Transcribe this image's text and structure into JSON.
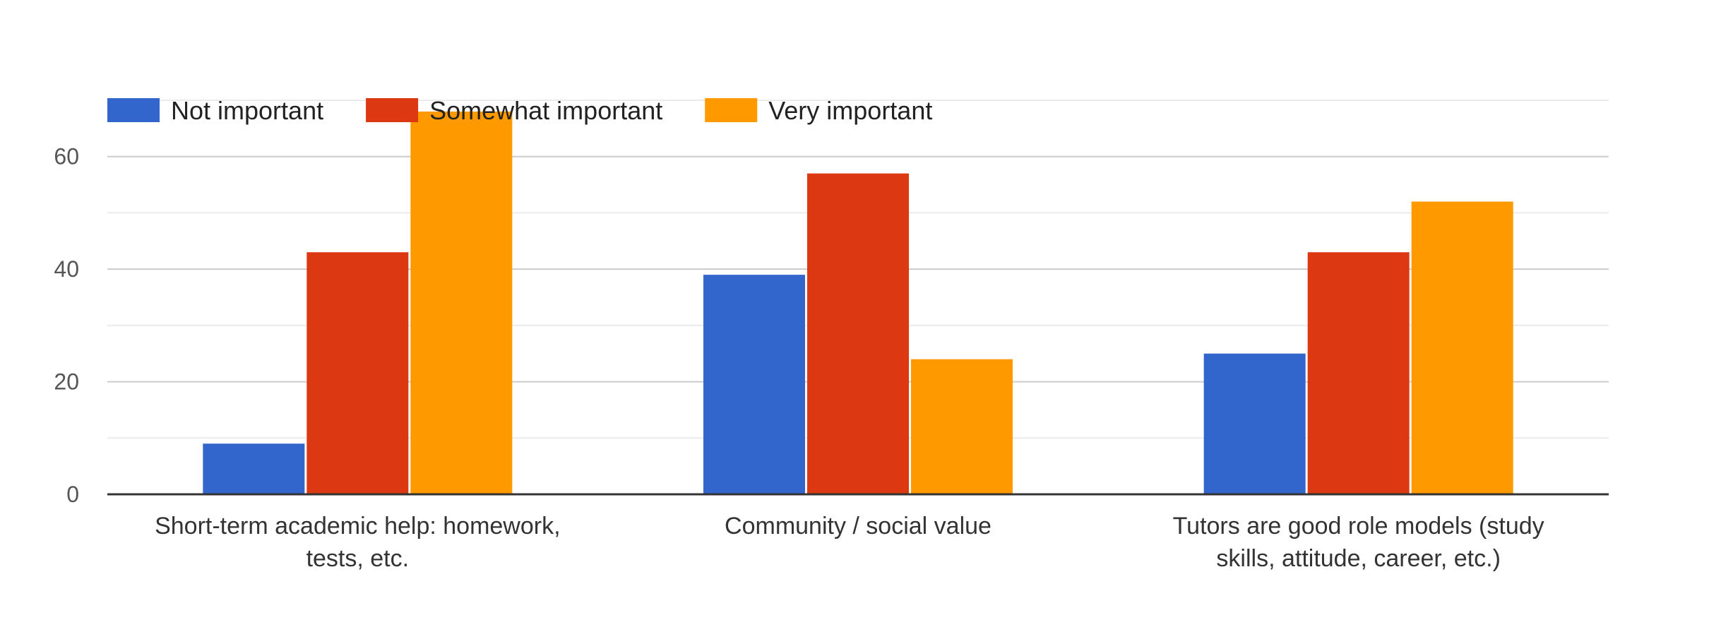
{
  "chart_data": {
    "type": "bar",
    "title": "",
    "xlabel": "",
    "ylabel": "",
    "ylim": [
      0,
      70
    ],
    "yticks": [
      0,
      20,
      40,
      60
    ],
    "grid": true,
    "legend_position": "top-left",
    "categories": [
      [
        "Short-term academic help: homework,",
        "tests, etc."
      ],
      [
        "Community / social value"
      ],
      [
        "Tutors are good role models (study",
        "skills, attitude, career, etc.)"
      ]
    ],
    "series": [
      {
        "name": "Not important",
        "color": "#3366cc",
        "values": [
          9,
          39,
          25
        ]
      },
      {
        "name": "Somewhat important",
        "color": "#dc3912",
        "values": [
          43,
          57,
          43
        ]
      },
      {
        "name": "Very important",
        "color": "#ff9900",
        "values": [
          68,
          24,
          52
        ]
      }
    ]
  }
}
